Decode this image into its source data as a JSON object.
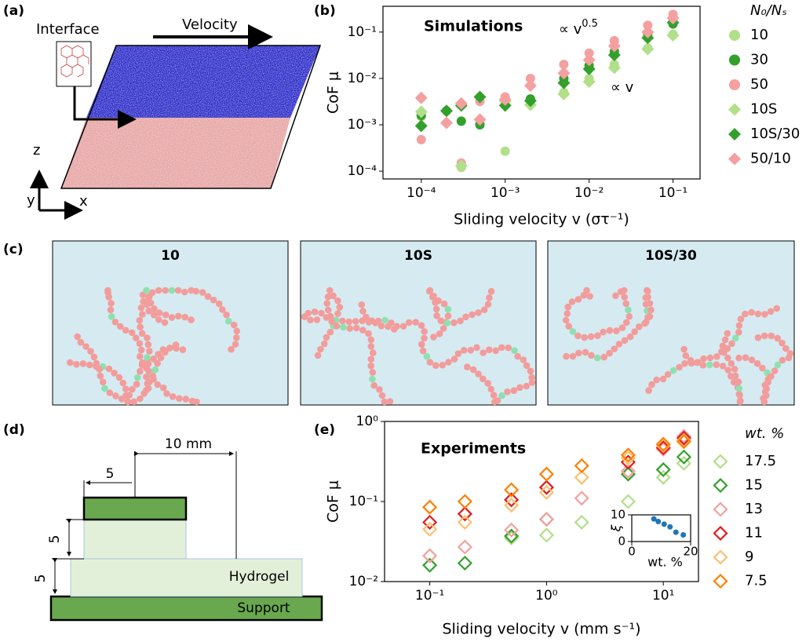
{
  "panel_labels": [
    "(a)",
    "(b)",
    "(c)",
    "(d)",
    "(e)"
  ],
  "panel_a": {
    "interface": "Interface",
    "velocity": "Velocity",
    "axes": [
      "z",
      "y",
      "x"
    ]
  },
  "panel_c": {
    "titles": [
      "10",
      "10S",
      "10S/30"
    ]
  },
  "panel_d": {
    "dimension": "10 mm",
    "offsets": [
      "5",
      "5",
      "5"
    ],
    "hydrogel": "Hydrogel",
    "support": "Support"
  },
  "chart_data": [
    {
      "type": "scatter",
      "annotations": [
        "Simulations"
      ],
      "slopes": [
        {
          "text": "∝ v",
          "exponent": "0.5"
        },
        {
          "text": "∝ v"
        }
      ],
      "x_label": "Sliding velocity v (στ⁻¹)",
      "y_label": "CoF μ",
      "legend_title": "N₀/Nₛ",
      "legend": "outside right",
      "log_x": true,
      "log_y": true,
      "xlim": [
        3.5e-05,
        0.21
      ],
      "ylim": [
        6.8e-05,
        0.36
      ],
      "xticks": [
        {
          "value": 0.0001,
          "label": "10⁻⁴"
        },
        {
          "value": 0.001,
          "label": "10⁻³"
        },
        {
          "value": 0.01,
          "label": "10⁻²"
        },
        {
          "value": 0.1,
          "label": "10⁻¹"
        }
      ],
      "yticks": [
        {
          "value": 0.0001,
          "label": "10⁻⁴"
        },
        {
          "value": 0.001,
          "label": "10⁻³"
        },
        {
          "value": 0.01,
          "label": "10⁻²"
        },
        {
          "value": 0.1,
          "label": "10⁻¹"
        }
      ],
      "x": [
        0.0001,
        0.0002,
        0.0003,
        0.0005,
        0.001,
        0.002,
        0.005,
        0.01,
        0.02,
        0.05,
        0.1
      ],
      "series": [
        {
          "name": "10",
          "color": "#b2df8a",
          "marker": "circle",
          "filled": true,
          "values": [
            0.0015,
            null,
            0.00012,
            0.0011,
            0.00027,
            0.0028,
            0.005,
            0.01,
            0.02,
            0.045,
            0.09
          ]
        },
        {
          "name": "30",
          "color": "#33a02c",
          "marker": "circle",
          "filled": true,
          "values": [
            0.0016,
            0.002,
            0.0012,
            0.001,
            0.0033,
            0.0036,
            0.01,
            0.019,
            0.038,
            0.09,
            0.15
          ]
        },
        {
          "name": "50",
          "color": "#f4a0a0",
          "marker": "circle",
          "filled": true,
          "values": [
            0.00048,
            null,
            0.00015,
            0.0032,
            0.004,
            0.01,
            0.02,
            0.035,
            0.065,
            0.14,
            0.24
          ]
        },
        {
          "name": "10S",
          "color": "#b2df8a",
          "marker": "diamond",
          "filled": true,
          "values": [
            0.0019,
            null,
            0.00013,
            null,
            0.0032,
            0.0027,
            0.0046,
            0.0085,
            0.017,
            0.043,
            0.085
          ]
        },
        {
          "name": "10S/30",
          "color": "#33a02c",
          "marker": "diamond",
          "filled": true,
          "values": [
            0.00095,
            0.002,
            0.0026,
            0.004,
            0.0026,
            0.0033,
            0.008,
            0.016,
            0.032,
            0.075,
            0.16
          ]
        },
        {
          "name": "50/10",
          "color": "#f4a0a0",
          "marker": "diamond",
          "filled": true,
          "values": [
            0.0038,
            0.0011,
            0.0029,
            0.0013,
            0.0035,
            0.007,
            0.013,
            0.025,
            0.05,
            0.1,
            0.2
          ]
        }
      ]
    },
    {
      "type": "scatter",
      "annotations": [
        "Experiments"
      ],
      "x_label": "Sliding velocity v (mm s⁻¹)",
      "y_label": "CoF μ",
      "legend_title": "wt. %",
      "legend": "outside right",
      "log_x": true,
      "log_y": true,
      "xlim": [
        0.041,
        20
      ],
      "ylim": [
        0.01,
        1
      ],
      "xticks": [
        {
          "value": 0.1,
          "label": "10⁻¹"
        },
        {
          "value": 1,
          "label": "10⁰"
        },
        {
          "value": 10,
          "label": "10¹"
        }
      ],
      "yticks": [
        {
          "value": 0.01,
          "label": "10⁻²"
        },
        {
          "value": 0.1,
          "label": "10⁻¹"
        },
        {
          "value": 1,
          "label": "10⁰"
        }
      ],
      "x": [
        0.1,
        0.2,
        0.5,
        1,
        2,
        5,
        10,
        15
      ],
      "series": [
        {
          "name": "17.5",
          "color": "#b2df8a",
          "marker": "diamond",
          "filled": false,
          "values": [
            0.021,
            null,
            0.035,
            0.038,
            0.055,
            0.1,
            0.2,
            0.3
          ]
        },
        {
          "name": "15",
          "color": "#33a02c",
          "marker": "diamond",
          "filled": false,
          "values": [
            0.016,
            0.017,
            0.037,
            0.06,
            null,
            0.22,
            0.25,
            0.36
          ]
        },
        {
          "name": "13",
          "color": "#f4a0a0",
          "marker": "diamond",
          "filled": false,
          "values": [
            0.021,
            0.027,
            0.044,
            0.06,
            0.11,
            0.24,
            0.45,
            0.65
          ]
        },
        {
          "name": "11",
          "color": "#e31a1c",
          "marker": "diamond",
          "filled": false,
          "values": [
            0.055,
            0.07,
            0.105,
            0.15,
            null,
            0.31,
            0.47,
            0.62
          ]
        },
        {
          "name": "9",
          "color": "#fdbf6f",
          "marker": "diamond",
          "filled": false,
          "values": [
            0.045,
            0.055,
            0.09,
            0.13,
            0.2,
            0.35,
            0.5,
            0.58
          ]
        },
        {
          "name": "7.5",
          "color": "#ff7f00",
          "marker": "diamond",
          "filled": false,
          "values": [
            0.085,
            0.1,
            0.14,
            0.22,
            0.28,
            0.38,
            0.52,
            0.56
          ]
        }
      ]
    },
    {
      "type": "scatter",
      "x_label": "wt. %",
      "y_label": "ξ",
      "xlim": [
        0,
        20
      ],
      "ylim": [
        0,
        10
      ],
      "xticks": [
        0,
        20
      ],
      "yticks": [
        0,
        10
      ],
      "x": [
        7.5,
        9,
        11,
        13,
        15,
        17.5
      ],
      "values": [
        8.5,
        7.5,
        6.5,
        5.5,
        3.5,
        2.5
      ],
      "color": "#1f77b4"
    }
  ]
}
